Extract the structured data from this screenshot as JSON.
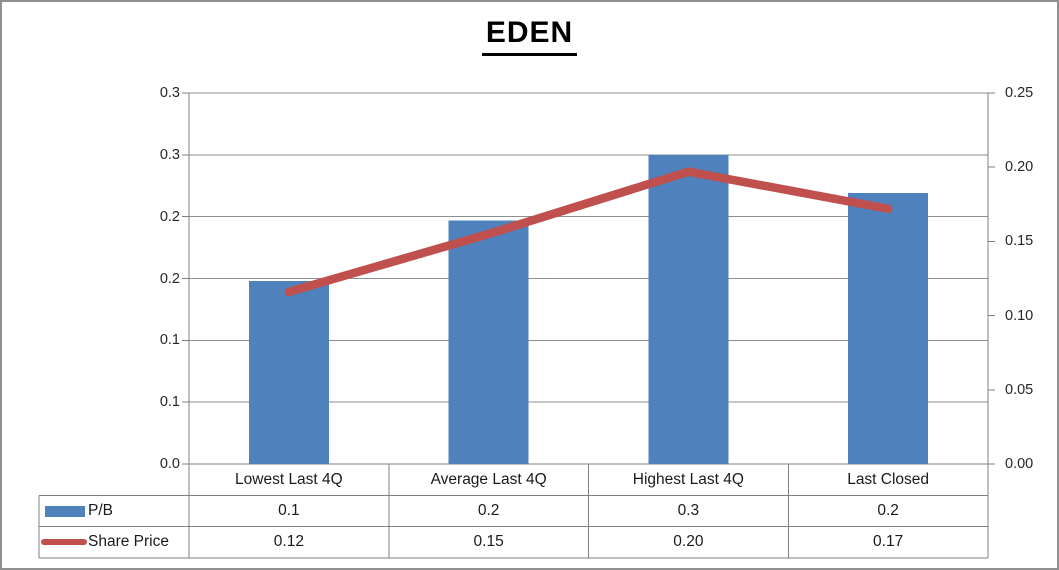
{
  "title": "EDEN",
  "colors": {
    "bar": "#4F81BD",
    "line": "#C0504D",
    "gridline": "#8e8e8e",
    "axis": "#7f7f7f",
    "table_border": "#7f7f7f",
    "text": "#1a1a1a",
    "outer_border": "#8f8f8f"
  },
  "chart_data": {
    "type": "bar",
    "subtype": "combo-bar-line-dual-axis",
    "title": "EDEN",
    "categories": [
      "Lowest Last 4Q",
      "Average Last 4Q",
      "Highest Last 4Q",
      "Last Closed"
    ],
    "series": [
      {
        "name": "P/B",
        "type": "bar",
        "axis": "left",
        "values": [
          0.148,
          0.197,
          0.25,
          0.219
        ],
        "table_labels": [
          "0.1",
          "0.2",
          "0.3",
          "0.2"
        ]
      },
      {
        "name": "Share Price",
        "type": "line",
        "axis": "right",
        "values": [
          0.116,
          0.155,
          0.197,
          0.172
        ],
        "table_labels": [
          "0.12",
          "0.15",
          "0.20",
          "0.17"
        ]
      }
    ],
    "left_axis": {
      "min": 0,
      "max": 0.3,
      "tick_labels": [
        "0.3",
        "0.3",
        "0.2",
        "0.2",
        "0.1",
        "0.1",
        "0.0"
      ]
    },
    "right_axis": {
      "min": 0,
      "max": 0.25,
      "tick_labels": [
        "0.25",
        "0.20",
        "0.15",
        "0.10",
        "0.05",
        "0.00"
      ]
    },
    "grid": true,
    "legend_position": "data-table-left-column"
  }
}
